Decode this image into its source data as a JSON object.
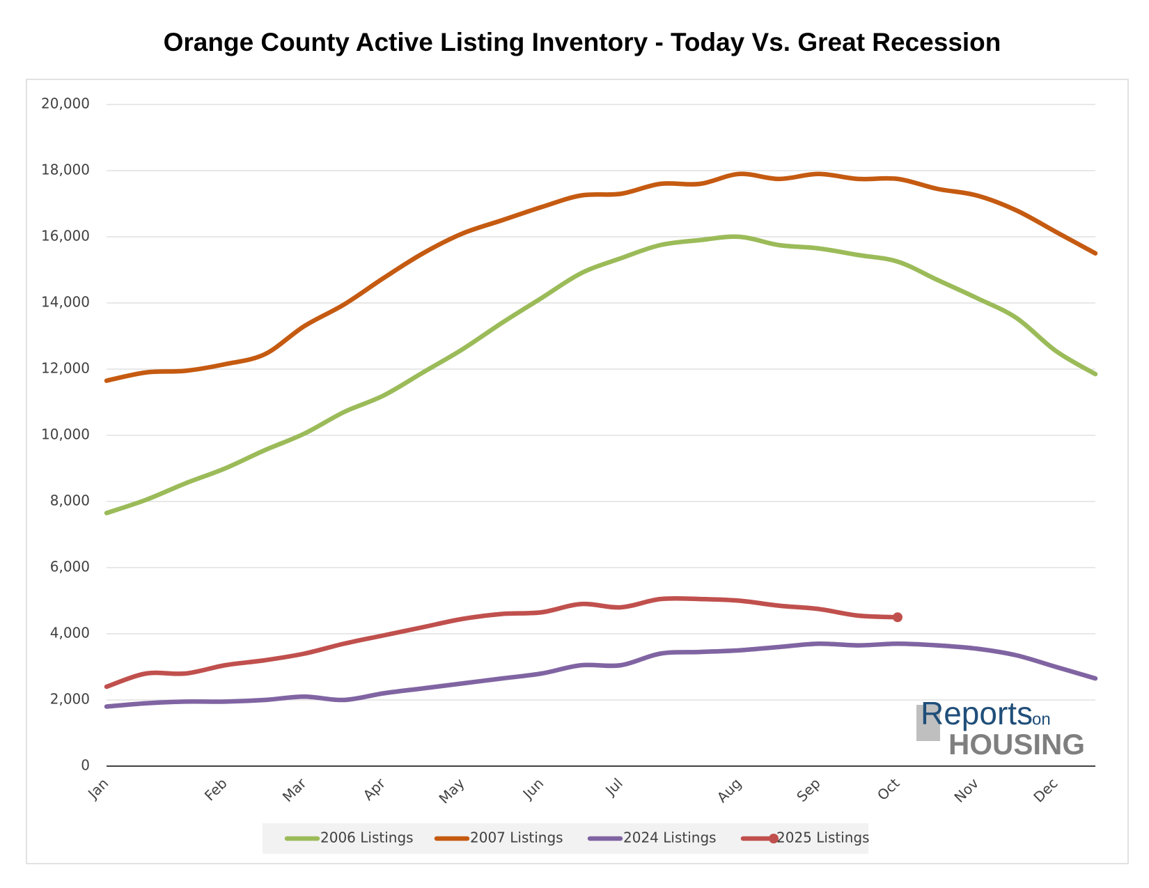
{
  "chart_data": {
    "type": "line",
    "title": "Orange County Active Listing Inventory - Today Vs. Great Recession",
    "categories": [
      "Jan",
      null,
      null,
      "Feb",
      null,
      "Mar",
      null,
      "Apr",
      null,
      "May",
      null,
      "Jun",
      null,
      "Jul",
      null,
      null,
      "Aug",
      null,
      "Sep",
      null,
      "Oct",
      null,
      "Nov",
      null,
      "Dec",
      null
    ],
    "series": [
      {
        "name": "2006 Listings",
        "color": "#9bbb59",
        "values": [
          7650,
          8050,
          8550,
          9000,
          9550,
          10050,
          10700,
          11200,
          11900,
          12600,
          13400,
          14150,
          14900,
          15350,
          15750,
          15900,
          16000,
          15750,
          15650,
          15450,
          15250,
          14700,
          14150,
          13550,
          12550,
          11850
        ]
      },
      {
        "name": "2007 Listings",
        "color": "#c55a11",
        "values": [
          11650,
          11900,
          11950,
          12150,
          12450,
          13300,
          13950,
          14750,
          15500,
          16100,
          16500,
          16900,
          17250,
          17300,
          17600,
          17600,
          17900,
          17750,
          17900,
          17750,
          17750,
          17450,
          17250,
          16800,
          16150,
          15500
        ]
      },
      {
        "name": "2024 Listings",
        "color": "#8064a2",
        "values": [
          1800,
          1900,
          1950,
          1950,
          2000,
          2100,
          2000,
          2200,
          2350,
          2500,
          2650,
          2800,
          3050,
          3050,
          3400,
          3450,
          3500,
          3600,
          3700,
          3650,
          3700,
          3650,
          3550,
          3350,
          3000,
          2650
        ]
      },
      {
        "name": "2025 Listings",
        "color": "#c0504d",
        "end_marker": true,
        "values": [
          2400,
          2800,
          2800,
          3050,
          3200,
          3400,
          3700,
          3950,
          4200,
          4450,
          4600,
          4650,
          4900,
          4800,
          5050,
          5050,
          5000,
          4850,
          4750,
          4550,
          4500,
          null,
          null,
          null,
          null,
          null
        ]
      }
    ],
    "ylim": [
      0,
      20000
    ],
    "yticks": [
      0,
      {
        "value": 2000,
        "label": "2,000"
      },
      {
        "value": 4000,
        "label": "4,000"
      },
      {
        "value": 6000,
        "label": "6,000"
      },
      {
        "value": 8000,
        "label": "8,000"
      },
      {
        "value": 10000,
        "label": "10,000"
      },
      {
        "value": 12000,
        "label": "12,000"
      },
      {
        "value": 14000,
        "label": "14,000"
      },
      {
        "value": 16000,
        "label": "16,000"
      },
      {
        "value": 18000,
        "label": "18,000"
      },
      {
        "value": 20000,
        "label": "20,000"
      }
    ],
    "grid": true,
    "legend": "bottom",
    "logo": {
      "line1": "Reports",
      "line1b": "on",
      "line2": "HOUSING"
    }
  }
}
